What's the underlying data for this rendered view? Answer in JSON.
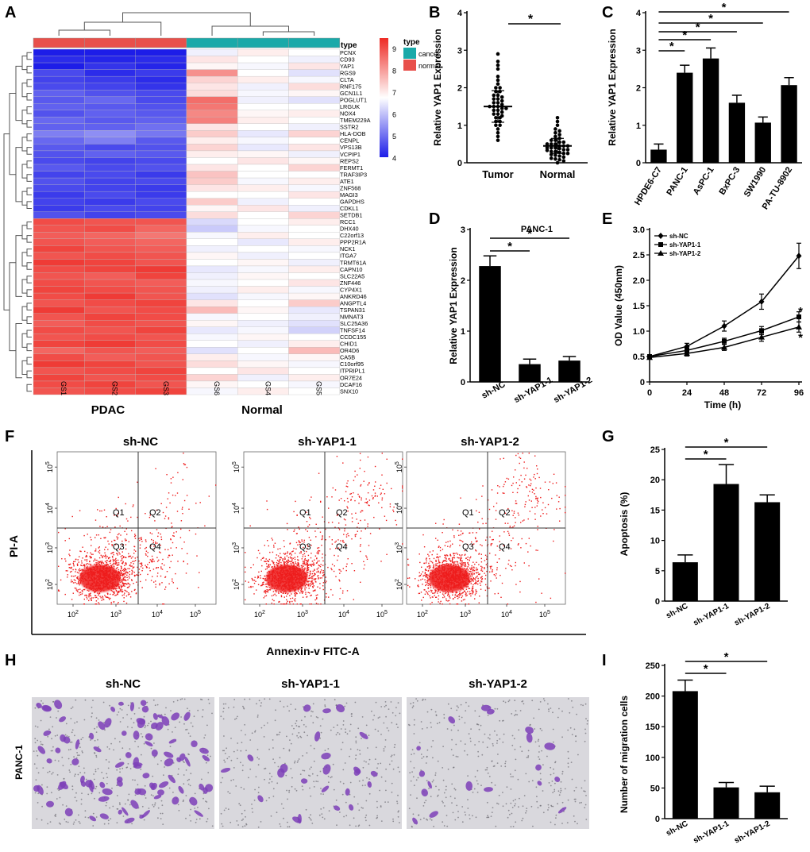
{
  "colors": {
    "cancer": "#1aa9a9",
    "normal": "#e8504b",
    "high": "#ee2a24",
    "mid": "#ffffff",
    "low": "#1d1de8",
    "bar": "#000000",
    "dot": "#ee1c1c"
  },
  "chart_data": [
    {
      "panel": "A",
      "type": "heatmap",
      "type_label": "type",
      "legend_title": "type",
      "legend_entries": [
        "cancer",
        "normal"
      ],
      "color_scale_ticks": [
        "9",
        "8",
        "7",
        "6",
        "5",
        "4"
      ],
      "color_range": [
        4,
        9.5
      ],
      "columns": [
        "GS1",
        "GS2",
        "GS3",
        "GS6",
        "GS4",
        "GS5"
      ],
      "group_labels": [
        "PDAC",
        "Normal"
      ],
      "genes": [
        "PCNX",
        "CD93",
        "YAP1",
        "RGS9",
        "CLTA",
        "RNF175",
        "GCN1L1",
        "POGLUT1",
        "LRGUK",
        "NOX4",
        "TMEM229A",
        "SSTR2",
        "HLA-DOB",
        "CENPL",
        "VPS13B",
        "VCPIP1",
        "REPS2",
        "FERMT1",
        "TRAF3IP3",
        "ATE1",
        "ZNF568",
        "MAGI3",
        "GAPDHS",
        "CDKL1",
        "SETDB1",
        "RCC1",
        "DHX40",
        "C22orf13",
        "PPP2R1A",
        "NCK1",
        "ITGA7",
        "TRMT61A",
        "CAPN10",
        "SLC22A5",
        "ZNF446",
        "CYP4X1",
        "ANKRD46",
        "ANGPTL4",
        "TSPAN31",
        "NMNAT3",
        "SLC25A36",
        "TNFSF14",
        "CCDC155",
        "CHID1",
        "OR4D6",
        "CA5B",
        "C10orf95",
        "ITPRIPL1",
        "OR7E24",
        "DCAF16",
        "SNX10"
      ],
      "matrix": [
        [
          4.0,
          4.0,
          4.0,
          6.8,
          7.2,
          7.0
        ],
        [
          4.2,
          4.1,
          4.2,
          7.3,
          7.0,
          6.8
        ],
        [
          4.0,
          4.3,
          4.1,
          7.1,
          6.9,
          7.3
        ],
        [
          4.6,
          4.2,
          4.4,
          8.3,
          7.0,
          6.6
        ],
        [
          4.5,
          4.4,
          4.2,
          7.5,
          7.2,
          6.9
        ],
        [
          4.6,
          4.5,
          4.3,
          7.3,
          6.8,
          7.4
        ],
        [
          4.9,
          4.7,
          4.6,
          7.4,
          6.9,
          7.1
        ],
        [
          4.8,
          5.0,
          4.6,
          8.7,
          6.8,
          6.6
        ],
        [
          4.9,
          4.8,
          4.7,
          8.6,
          7.0,
          7.0
        ],
        [
          4.7,
          4.9,
          4.8,
          8.4,
          7.1,
          7.2
        ],
        [
          5.0,
          4.8,
          4.9,
          8.5,
          7.2,
          7.0
        ],
        [
          4.9,
          4.9,
          5.1,
          7.3,
          7.0,
          6.8
        ],
        [
          5.3,
          5.5,
          5.2,
          7.6,
          6.7,
          7.5
        ],
        [
          5.0,
          5.3,
          4.8,
          7.2,
          6.9,
          7.0
        ],
        [
          4.8,
          4.6,
          4.7,
          7.5,
          6.7,
          7.3
        ],
        [
          4.7,
          4.9,
          4.8,
          7.2,
          7.1,
          6.8
        ],
        [
          4.6,
          4.5,
          4.6,
          7.0,
          7.3,
          7.1
        ],
        [
          4.8,
          4.6,
          4.7,
          7.3,
          7.0,
          7.5
        ],
        [
          4.5,
          4.6,
          4.4,
          7.7,
          7.0,
          7.0
        ],
        [
          4.7,
          4.5,
          4.6,
          7.6,
          6.9,
          7.2
        ],
        [
          4.6,
          4.5,
          4.4,
          7.3,
          7.2,
          6.9
        ],
        [
          4.4,
          4.6,
          4.4,
          7.0,
          7.0,
          7.3
        ],
        [
          4.5,
          4.4,
          4.6,
          7.6,
          6.8,
          7.0
        ],
        [
          4.4,
          4.6,
          4.5,
          7.1,
          7.3,
          6.8
        ],
        [
          4.7,
          4.5,
          4.6,
          7.4,
          7.0,
          7.5
        ],
        [
          9.1,
          9.0,
          9.0,
          6.5,
          7.0,
          7.2
        ],
        [
          9.0,
          9.1,
          8.8,
          6.3,
          6.9,
          7.0
        ],
        [
          8.9,
          8.8,
          8.6,
          6.9,
          7.2,
          7.0
        ],
        [
          9.0,
          8.9,
          8.8,
          7.0,
          6.7,
          7.2
        ],
        [
          9.2,
          9.0,
          8.9,
          6.8,
          7.0,
          6.9
        ],
        [
          9.0,
          9.1,
          9.0,
          7.1,
          6.8,
          7.0
        ],
        [
          9.3,
          9.2,
          9.0,
          7.0,
          7.1,
          6.8
        ],
        [
          9.1,
          9.2,
          9.3,
          6.7,
          6.9,
          7.2
        ],
        [
          9.0,
          8.9,
          9.2,
          6.8,
          7.1,
          7.0
        ],
        [
          9.1,
          9.0,
          8.9,
          6.9,
          7.0,
          7.3
        ],
        [
          9.2,
          9.1,
          9.0,
          6.8,
          7.2,
          6.9
        ],
        [
          9.1,
          9.3,
          9.0,
          6.6,
          6.9,
          7.1
        ],
        [
          9.0,
          9.1,
          9.2,
          7.3,
          7.0,
          7.6
        ],
        [
          9.3,
          9.0,
          9.1,
          7.8,
          7.1,
          6.7
        ],
        [
          9.0,
          9.2,
          9.1,
          6.9,
          7.0,
          6.8
        ],
        [
          8.9,
          9.1,
          9.0,
          7.1,
          6.8,
          6.6
        ],
        [
          9.1,
          9.0,
          9.2,
          6.7,
          6.9,
          6.4
        ],
        [
          9.0,
          9.1,
          9.0,
          6.9,
          7.1,
          7.0
        ],
        [
          9.2,
          9.3,
          9.1,
          7.0,
          6.8,
          7.2
        ],
        [
          8.8,
          9.0,
          8.9,
          6.6,
          7.0,
          7.8
        ],
        [
          9.1,
          8.9,
          9.0,
          7.2,
          6.9,
          7.1
        ],
        [
          9.3,
          9.2,
          9.0,
          7.4,
          7.1,
          6.9
        ],
        [
          9.0,
          9.1,
          9.2,
          7.0,
          7.3,
          7.0
        ],
        [
          9.2,
          9.0,
          9.1,
          7.5,
          6.8,
          7.2
        ],
        [
          9.1,
          9.2,
          9.0,
          7.1,
          7.0,
          6.9
        ],
        [
          9.0,
          9.1,
          9.2,
          6.9,
          7.2,
          7.0
        ]
      ]
    },
    {
      "panel": "B",
      "type": "scatter",
      "categories": [
        "Tumor",
        "Normal"
      ],
      "ylabel": "Relative YAP1 Expression",
      "ylim": [
        0,
        4
      ],
      "yticks": [
        0,
        1,
        2,
        3,
        4
      ],
      "means": [
        1.5,
        0.45
      ],
      "sd": [
        0.42,
        0.2
      ],
      "significance": "*",
      "tumor_values": [
        2.9,
        2.7,
        2.6,
        2.5,
        2.3,
        2.2,
        2.1,
        2.0,
        2.0,
        1.9,
        1.9,
        1.8,
        1.8,
        1.75,
        1.7,
        1.7,
        1.65,
        1.6,
        1.6,
        1.55,
        1.5,
        1.5,
        1.5,
        1.45,
        1.45,
        1.4,
        1.4,
        1.35,
        1.3,
        1.3,
        1.25,
        1.2,
        1.2,
        1.1,
        1.1,
        1.0,
        1.0,
        0.9,
        0.8,
        0.7,
        0.6
      ],
      "normal_values": [
        1.2,
        1.1,
        1.0,
        0.9,
        0.85,
        0.8,
        0.75,
        0.7,
        0.65,
        0.6,
        0.6,
        0.55,
        0.55,
        0.5,
        0.5,
        0.5,
        0.45,
        0.45,
        0.45,
        0.4,
        0.4,
        0.4,
        0.38,
        0.35,
        0.35,
        0.33,
        0.3,
        0.3,
        0.28,
        0.25,
        0.25,
        0.22,
        0.2,
        0.18,
        0.15,
        0.12,
        0.1,
        0.08,
        0.05,
        0.0
      ]
    },
    {
      "panel": "C",
      "type": "bar",
      "categories": [
        "HPDE6-C7",
        "PANC-1",
        "AsPC-1",
        "BxPC-3",
        "SW1990",
        "PA-TU-8902"
      ],
      "values": [
        0.35,
        2.4,
        2.78,
        1.6,
        1.07,
        2.07
      ],
      "errors": [
        0.15,
        0.2,
        0.28,
        0.2,
        0.15,
        0.2
      ],
      "ylabel": "Relative YAP1 Expression",
      "ylim": [
        0,
        4
      ],
      "yticks": [
        0,
        1,
        2,
        3,
        4
      ],
      "significance": "*"
    },
    {
      "panel": "D",
      "type": "bar",
      "title": "PANC-1",
      "categories": [
        "sh-NC",
        "sh-YAP1-1",
        "sh-YAP1-2"
      ],
      "values": [
        2.28,
        0.35,
        0.42
      ],
      "errors": [
        0.2,
        0.1,
        0.08
      ],
      "ylabel": "Relative YAP1 Expression",
      "ylim": [
        0,
        3
      ],
      "yticks": [
        0,
        1,
        2,
        3
      ],
      "significance": "*"
    },
    {
      "panel": "E",
      "type": "line",
      "x": [
        0,
        24,
        48,
        72,
        96
      ],
      "series": [
        {
          "name": "sh-NC",
          "values": [
            0.5,
            0.7,
            1.1,
            1.58,
            2.48
          ],
          "errors": [
            0.03,
            0.06,
            0.1,
            0.15,
            0.25
          ]
        },
        {
          "name": "sh-YAP1-1",
          "values": [
            0.5,
            0.62,
            0.8,
            1.01,
            1.28
          ],
          "errors": [
            0.03,
            0.05,
            0.06,
            0.08,
            0.1
          ]
        },
        {
          "name": "sh-YAP1-2",
          "values": [
            0.48,
            0.56,
            0.68,
            0.88,
            1.08
          ],
          "errors": [
            0.03,
            0.05,
            0.06,
            0.08,
            0.1
          ]
        }
      ],
      "xlabel": "Time (h)",
      "ylabel": "OD Value (450nm)",
      "ylim": [
        0,
        3.0
      ],
      "yticks": [
        "0",
        "0.5",
        "1.0",
        "1.5",
        "2.0",
        "2.5",
        "3.0"
      ],
      "significance": "*"
    },
    {
      "panel": "F",
      "type": "scatter",
      "titles": [
        "sh-NC",
        "sh-YAP1-1",
        "sh-YAP1-2"
      ],
      "quadrants": [
        "Q1",
        "Q2",
        "Q3",
        "Q4"
      ],
      "xlabel": "Annexin-v FITC-A",
      "ylabel": "PI-A",
      "xtick_bases": [
        "10",
        "10",
        "10",
        "10"
      ],
      "xtick_exps": [
        "2",
        "3",
        "4",
        "5"
      ],
      "ytick_bases": [
        "10",
        "10",
        "10",
        "10"
      ],
      "ytick_exps": [
        "2",
        "3",
        "4",
        "5"
      ],
      "upper_right_fraction": [
        0.03,
        0.1,
        0.09
      ]
    },
    {
      "panel": "G",
      "type": "bar",
      "categories": [
        "sh-NC",
        "sh-YAP1-1",
        "sh-YAP1-2"
      ],
      "values": [
        6.4,
        19.3,
        16.3
      ],
      "errors": [
        1.2,
        3.2,
        1.2
      ],
      "ylabel": "Apoptosis (%)",
      "ylim": [
        0,
        25
      ],
      "yticks": [
        0,
        5,
        10,
        15,
        20,
        25
      ],
      "significance": "*"
    },
    {
      "panel": "H",
      "type": "table",
      "titles": [
        "sh-NC",
        "sh-YAP1-1",
        "sh-YAP1-2"
      ],
      "row_label": "PANC-1",
      "relative_cell_density": [
        1.0,
        0.25,
        0.2
      ]
    },
    {
      "panel": "I",
      "type": "bar",
      "categories": [
        "sh-NC",
        "sh-YAP1-1",
        "sh-YAP1-2"
      ],
      "values": [
        208,
        51,
        43
      ],
      "errors": [
        18,
        8,
        10
      ],
      "ylabel": "Number of migration cells",
      "ylim": [
        0,
        250
      ],
      "yticks": [
        0,
        50,
        100,
        150,
        200,
        250
      ],
      "significance": "*"
    }
  ],
  "panel_letters": [
    "A",
    "B",
    "C",
    "D",
    "E",
    "F",
    "G",
    "H",
    "I"
  ]
}
